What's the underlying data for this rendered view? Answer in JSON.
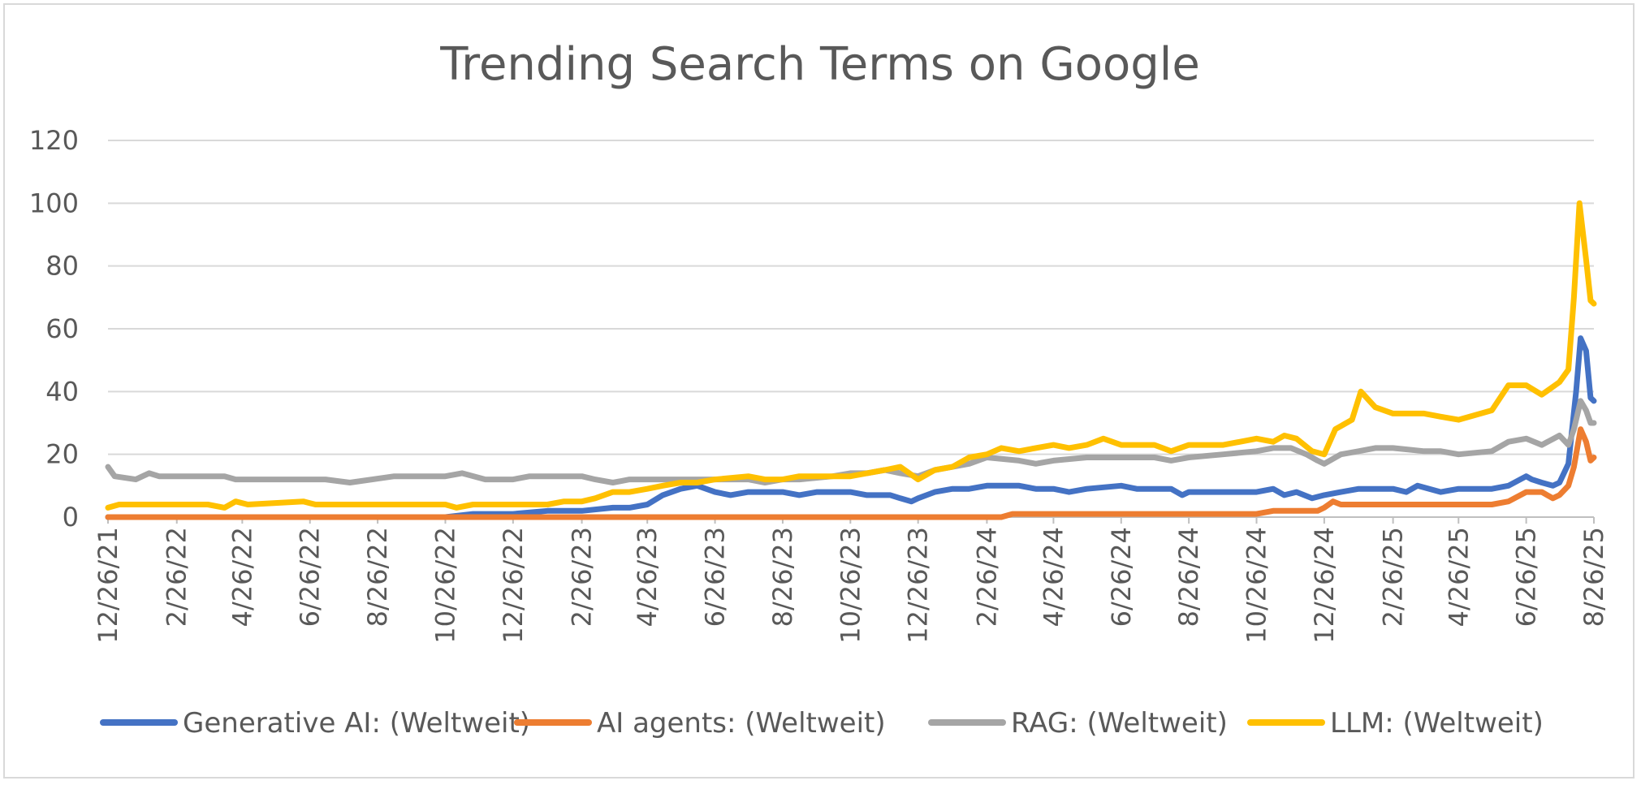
{
  "chart_data": {
    "type": "line",
    "title": "Trending Search Terms on Google",
    "xlabel": "",
    "ylabel": "",
    "ylim": [
      0,
      120
    ],
    "yticks": [
      "0",
      "20",
      "40",
      "60",
      "80",
      "100",
      "120"
    ],
    "xticks": [
      "12/26/21",
      "2/26/22",
      "4/26/22",
      "6/26/22",
      "8/26/22",
      "10/26/22",
      "12/26/22",
      "2/26/23",
      "4/26/23",
      "6/26/23",
      "8/26/23",
      "10/26/23",
      "12/26/23",
      "2/26/24",
      "4/26/24",
      "6/26/24",
      "8/26/24",
      "10/26/24",
      "12/26/24",
      "2/26/25",
      "4/26/25",
      "6/26/25",
      "8/26/25"
    ],
    "x_start": "12/26/21",
    "x_end": "8/26/25",
    "grid": true,
    "legend_position": "bottom",
    "series": [
      {
        "name": "Generative AI: (Weltweit)",
        "color": "#4472c4",
        "points": [
          [
            "12/26/21",
            0
          ],
          [
            "10/26/22",
            0
          ],
          [
            "11/20/22",
            1
          ],
          [
            "12/26/22",
            1
          ],
          [
            "1/26/23",
            2
          ],
          [
            "2/26/23",
            2
          ],
          [
            "3/26/23",
            3
          ],
          [
            "4/10/23",
            3
          ],
          [
            "4/26/23",
            4
          ],
          [
            "5/10/23",
            7
          ],
          [
            "5/26/23",
            9
          ],
          [
            "6/10/23",
            10
          ],
          [
            "6/26/23",
            8
          ],
          [
            "7/10/23",
            7
          ],
          [
            "7/26/23",
            8
          ],
          [
            "8/26/23",
            8
          ],
          [
            "9/10/23",
            7
          ],
          [
            "9/26/23",
            8
          ],
          [
            "10/26/23",
            8
          ],
          [
            "11/10/23",
            7
          ],
          [
            "12/1/23",
            7
          ],
          [
            "12/10/23",
            6
          ],
          [
            "12/20/23",
            5
          ],
          [
            "12/26/23",
            6
          ],
          [
            "1/10/24",
            8
          ],
          [
            "1/26/24",
            9
          ],
          [
            "2/10/24",
            9
          ],
          [
            "2/26/24",
            10
          ],
          [
            "3/26/24",
            10
          ],
          [
            "4/10/24",
            9
          ],
          [
            "4/26/24",
            9
          ],
          [
            "5/10/24",
            8
          ],
          [
            "5/26/24",
            9
          ],
          [
            "6/26/24",
            10
          ],
          [
            "7/10/24",
            9
          ],
          [
            "8/10/24",
            9
          ],
          [
            "8/20/24",
            7
          ],
          [
            "8/26/24",
            8
          ],
          [
            "9/10/24",
            8
          ],
          [
            "10/26/24",
            8
          ],
          [
            "11/10/24",
            9
          ],
          [
            "11/20/24",
            7
          ],
          [
            "12/1/24",
            8
          ],
          [
            "12/15/24",
            6
          ],
          [
            "12/26/24",
            7
          ],
          [
            "1/10/25",
            8
          ],
          [
            "1/26/25",
            9
          ],
          [
            "2/26/25",
            9
          ],
          [
            "3/10/25",
            8
          ],
          [
            "3/20/25",
            10
          ],
          [
            "4/10/25",
            8
          ],
          [
            "4/26/25",
            9
          ],
          [
            "5/26/25",
            9
          ],
          [
            "6/10/25",
            10
          ],
          [
            "6/26/25",
            13
          ],
          [
            "7/1/25",
            12
          ],
          [
            "7/10/25",
            11
          ],
          [
            "7/20/25",
            10
          ],
          [
            "7/26/25",
            11
          ],
          [
            "8/3/25",
            17
          ],
          [
            "8/10/25",
            40
          ],
          [
            "8/14/25",
            57
          ],
          [
            "8/19/25",
            53
          ],
          [
            "8/23/25",
            38
          ],
          [
            "8/26/25",
            37
          ]
        ]
      },
      {
        "name": "AI agents: (Weltweit)",
        "color": "#ed7d31",
        "points": [
          [
            "12/26/21",
            0
          ],
          [
            "2/26/24",
            0
          ],
          [
            "3/10/24",
            0
          ],
          [
            "3/20/24",
            1
          ],
          [
            "10/26/24",
            1
          ],
          [
            "11/10/24",
            2
          ],
          [
            "12/20/24",
            2
          ],
          [
            "12/26/24",
            3
          ],
          [
            "1/3/25",
            5
          ],
          [
            "1/10/25",
            4
          ],
          [
            "5/26/25",
            4
          ],
          [
            "6/10/25",
            5
          ],
          [
            "6/26/25",
            8
          ],
          [
            "7/10/25",
            8
          ],
          [
            "7/20/25",
            6
          ],
          [
            "7/26/25",
            7
          ],
          [
            "8/3/25",
            10
          ],
          [
            "8/8/25",
            16
          ],
          [
            "8/14/25",
            28
          ],
          [
            "8/19/25",
            24
          ],
          [
            "8/23/25",
            18
          ],
          [
            "8/26/25",
            19
          ]
        ]
      },
      {
        "name": "RAG: (Weltweit)",
        "color": "#a5a5a5",
        "points": [
          [
            "12/26/21",
            16
          ],
          [
            "1/1/22",
            13
          ],
          [
            "1/20/22",
            12
          ],
          [
            "2/1/22",
            14
          ],
          [
            "2/10/22",
            13
          ],
          [
            "4/10/22",
            13
          ],
          [
            "4/20/22",
            12
          ],
          [
            "5/10/22",
            12
          ],
          [
            "6/10/22",
            12
          ],
          [
            "7/10/22",
            12
          ],
          [
            "8/1/22",
            11
          ],
          [
            "9/10/22",
            13
          ],
          [
            "10/26/22",
            13
          ],
          [
            "11/10/22",
            14
          ],
          [
            "12/1/22",
            12
          ],
          [
            "12/26/22",
            12
          ],
          [
            "1/10/23",
            13
          ],
          [
            "2/10/23",
            13
          ],
          [
            "2/26/23",
            13
          ],
          [
            "3/10/23",
            12
          ],
          [
            "3/26/23",
            11
          ],
          [
            "4/10/23",
            12
          ],
          [
            "4/26/23",
            12
          ],
          [
            "5/26/23",
            12
          ],
          [
            "6/26/23",
            12
          ],
          [
            "7/26/23",
            12
          ],
          [
            "8/10/23",
            11
          ],
          [
            "8/26/23",
            12
          ],
          [
            "9/10/23",
            12
          ],
          [
            "10/10/23",
            13
          ],
          [
            "10/26/23",
            14
          ],
          [
            "11/10/23",
            14
          ],
          [
            "11/26/23",
            15
          ],
          [
            "12/10/23",
            14
          ],
          [
            "12/26/23",
            13
          ],
          [
            "1/10/24",
            15
          ],
          [
            "1/26/24",
            16
          ],
          [
            "2/10/24",
            17
          ],
          [
            "2/26/24",
            19
          ],
          [
            "3/26/24",
            18
          ],
          [
            "4/10/24",
            17
          ],
          [
            "4/26/24",
            18
          ],
          [
            "5/26/24",
            19
          ],
          [
            "6/26/24",
            19
          ],
          [
            "7/26/24",
            19
          ],
          [
            "8/10/24",
            18
          ],
          [
            "8/26/24",
            19
          ],
          [
            "9/26/24",
            20
          ],
          [
            "10/26/24",
            21
          ],
          [
            "11/10/24",
            22
          ],
          [
            "11/26/24",
            22
          ],
          [
            "12/10/24",
            20
          ],
          [
            "12/20/24",
            18
          ],
          [
            "12/26/24",
            17
          ],
          [
            "1/10/25",
            20
          ],
          [
            "1/26/25",
            21
          ],
          [
            "2/10/25",
            22
          ],
          [
            "2/26/25",
            22
          ],
          [
            "3/26/25",
            21
          ],
          [
            "4/10/25",
            21
          ],
          [
            "4/26/25",
            20
          ],
          [
            "5/26/25",
            21
          ],
          [
            "6/10/25",
            24
          ],
          [
            "6/26/25",
            25
          ],
          [
            "7/10/25",
            23
          ],
          [
            "7/26/25",
            26
          ],
          [
            "8/3/25",
            23
          ],
          [
            "8/8/25",
            28
          ],
          [
            "8/14/25",
            37
          ],
          [
            "8/19/25",
            34
          ],
          [
            "8/23/25",
            30
          ],
          [
            "8/26/25",
            30
          ]
        ]
      },
      {
        "name": "LLM: (Weltweit)",
        "color": "#ffc000",
        "points": [
          [
            "12/26/21",
            3
          ],
          [
            "1/5/22",
            4
          ],
          [
            "3/26/22",
            4
          ],
          [
            "4/10/22",
            3
          ],
          [
            "4/20/22",
            5
          ],
          [
            "5/1/22",
            4
          ],
          [
            "6/20/22",
            5
          ],
          [
            "7/1/22",
            4
          ],
          [
            "10/26/22",
            4
          ],
          [
            "11/5/22",
            3
          ],
          [
            "11/20/22",
            4
          ],
          [
            "12/26/22",
            4
          ],
          [
            "1/26/23",
            4
          ],
          [
            "2/10/23",
            5
          ],
          [
            "2/26/23",
            5
          ],
          [
            "3/10/23",
            6
          ],
          [
            "3/26/23",
            8
          ],
          [
            "4/10/23",
            8
          ],
          [
            "4/26/23",
            9
          ],
          [
            "5/10/23",
            10
          ],
          [
            "5/26/23",
            11
          ],
          [
            "6/10/23",
            11
          ],
          [
            "6/26/23",
            12
          ],
          [
            "7/26/23",
            13
          ],
          [
            "8/10/23",
            12
          ],
          [
            "8/26/23",
            12
          ],
          [
            "9/10/23",
            13
          ],
          [
            "9/26/23",
            13
          ],
          [
            "10/26/23",
            13
          ],
          [
            "11/10/23",
            14
          ],
          [
            "11/26/23",
            15
          ],
          [
            "12/10/23",
            16
          ],
          [
            "12/26/23",
            12
          ],
          [
            "1/10/24",
            15
          ],
          [
            "1/26/24",
            16
          ],
          [
            "2/10/24",
            19
          ],
          [
            "2/26/24",
            20
          ],
          [
            "3/10/24",
            22
          ],
          [
            "3/26/24",
            21
          ],
          [
            "4/10/24",
            22
          ],
          [
            "4/26/24",
            23
          ],
          [
            "5/10/24",
            22
          ],
          [
            "5/26/24",
            23
          ],
          [
            "6/10/24",
            25
          ],
          [
            "6/26/24",
            23
          ],
          [
            "7/26/24",
            23
          ],
          [
            "8/10/24",
            21
          ],
          [
            "8/26/24",
            23
          ],
          [
            "9/26/24",
            23
          ],
          [
            "10/26/24",
            25
          ],
          [
            "11/10/24",
            24
          ],
          [
            "11/20/24",
            26
          ],
          [
            "12/1/24",
            25
          ],
          [
            "12/15/24",
            21
          ],
          [
            "12/26/24",
            20
          ],
          [
            "1/5/25",
            28
          ],
          [
            "1/20/25",
            31
          ],
          [
            "1/28/25",
            40
          ],
          [
            "2/10/25",
            35
          ],
          [
            "2/26/25",
            33
          ],
          [
            "3/26/25",
            33
          ],
          [
            "4/10/25",
            32
          ],
          [
            "4/26/25",
            31
          ],
          [
            "5/26/25",
            34
          ],
          [
            "6/10/25",
            42
          ],
          [
            "6/26/25",
            42
          ],
          [
            "7/10/25",
            39
          ],
          [
            "7/26/25",
            43
          ],
          [
            "8/3/25",
            47
          ],
          [
            "8/8/25",
            70
          ],
          [
            "8/13/25",
            100
          ],
          [
            "8/19/25",
            82
          ],
          [
            "8/23/25",
            69
          ],
          [
            "8/26/25",
            68
          ]
        ]
      }
    ]
  }
}
